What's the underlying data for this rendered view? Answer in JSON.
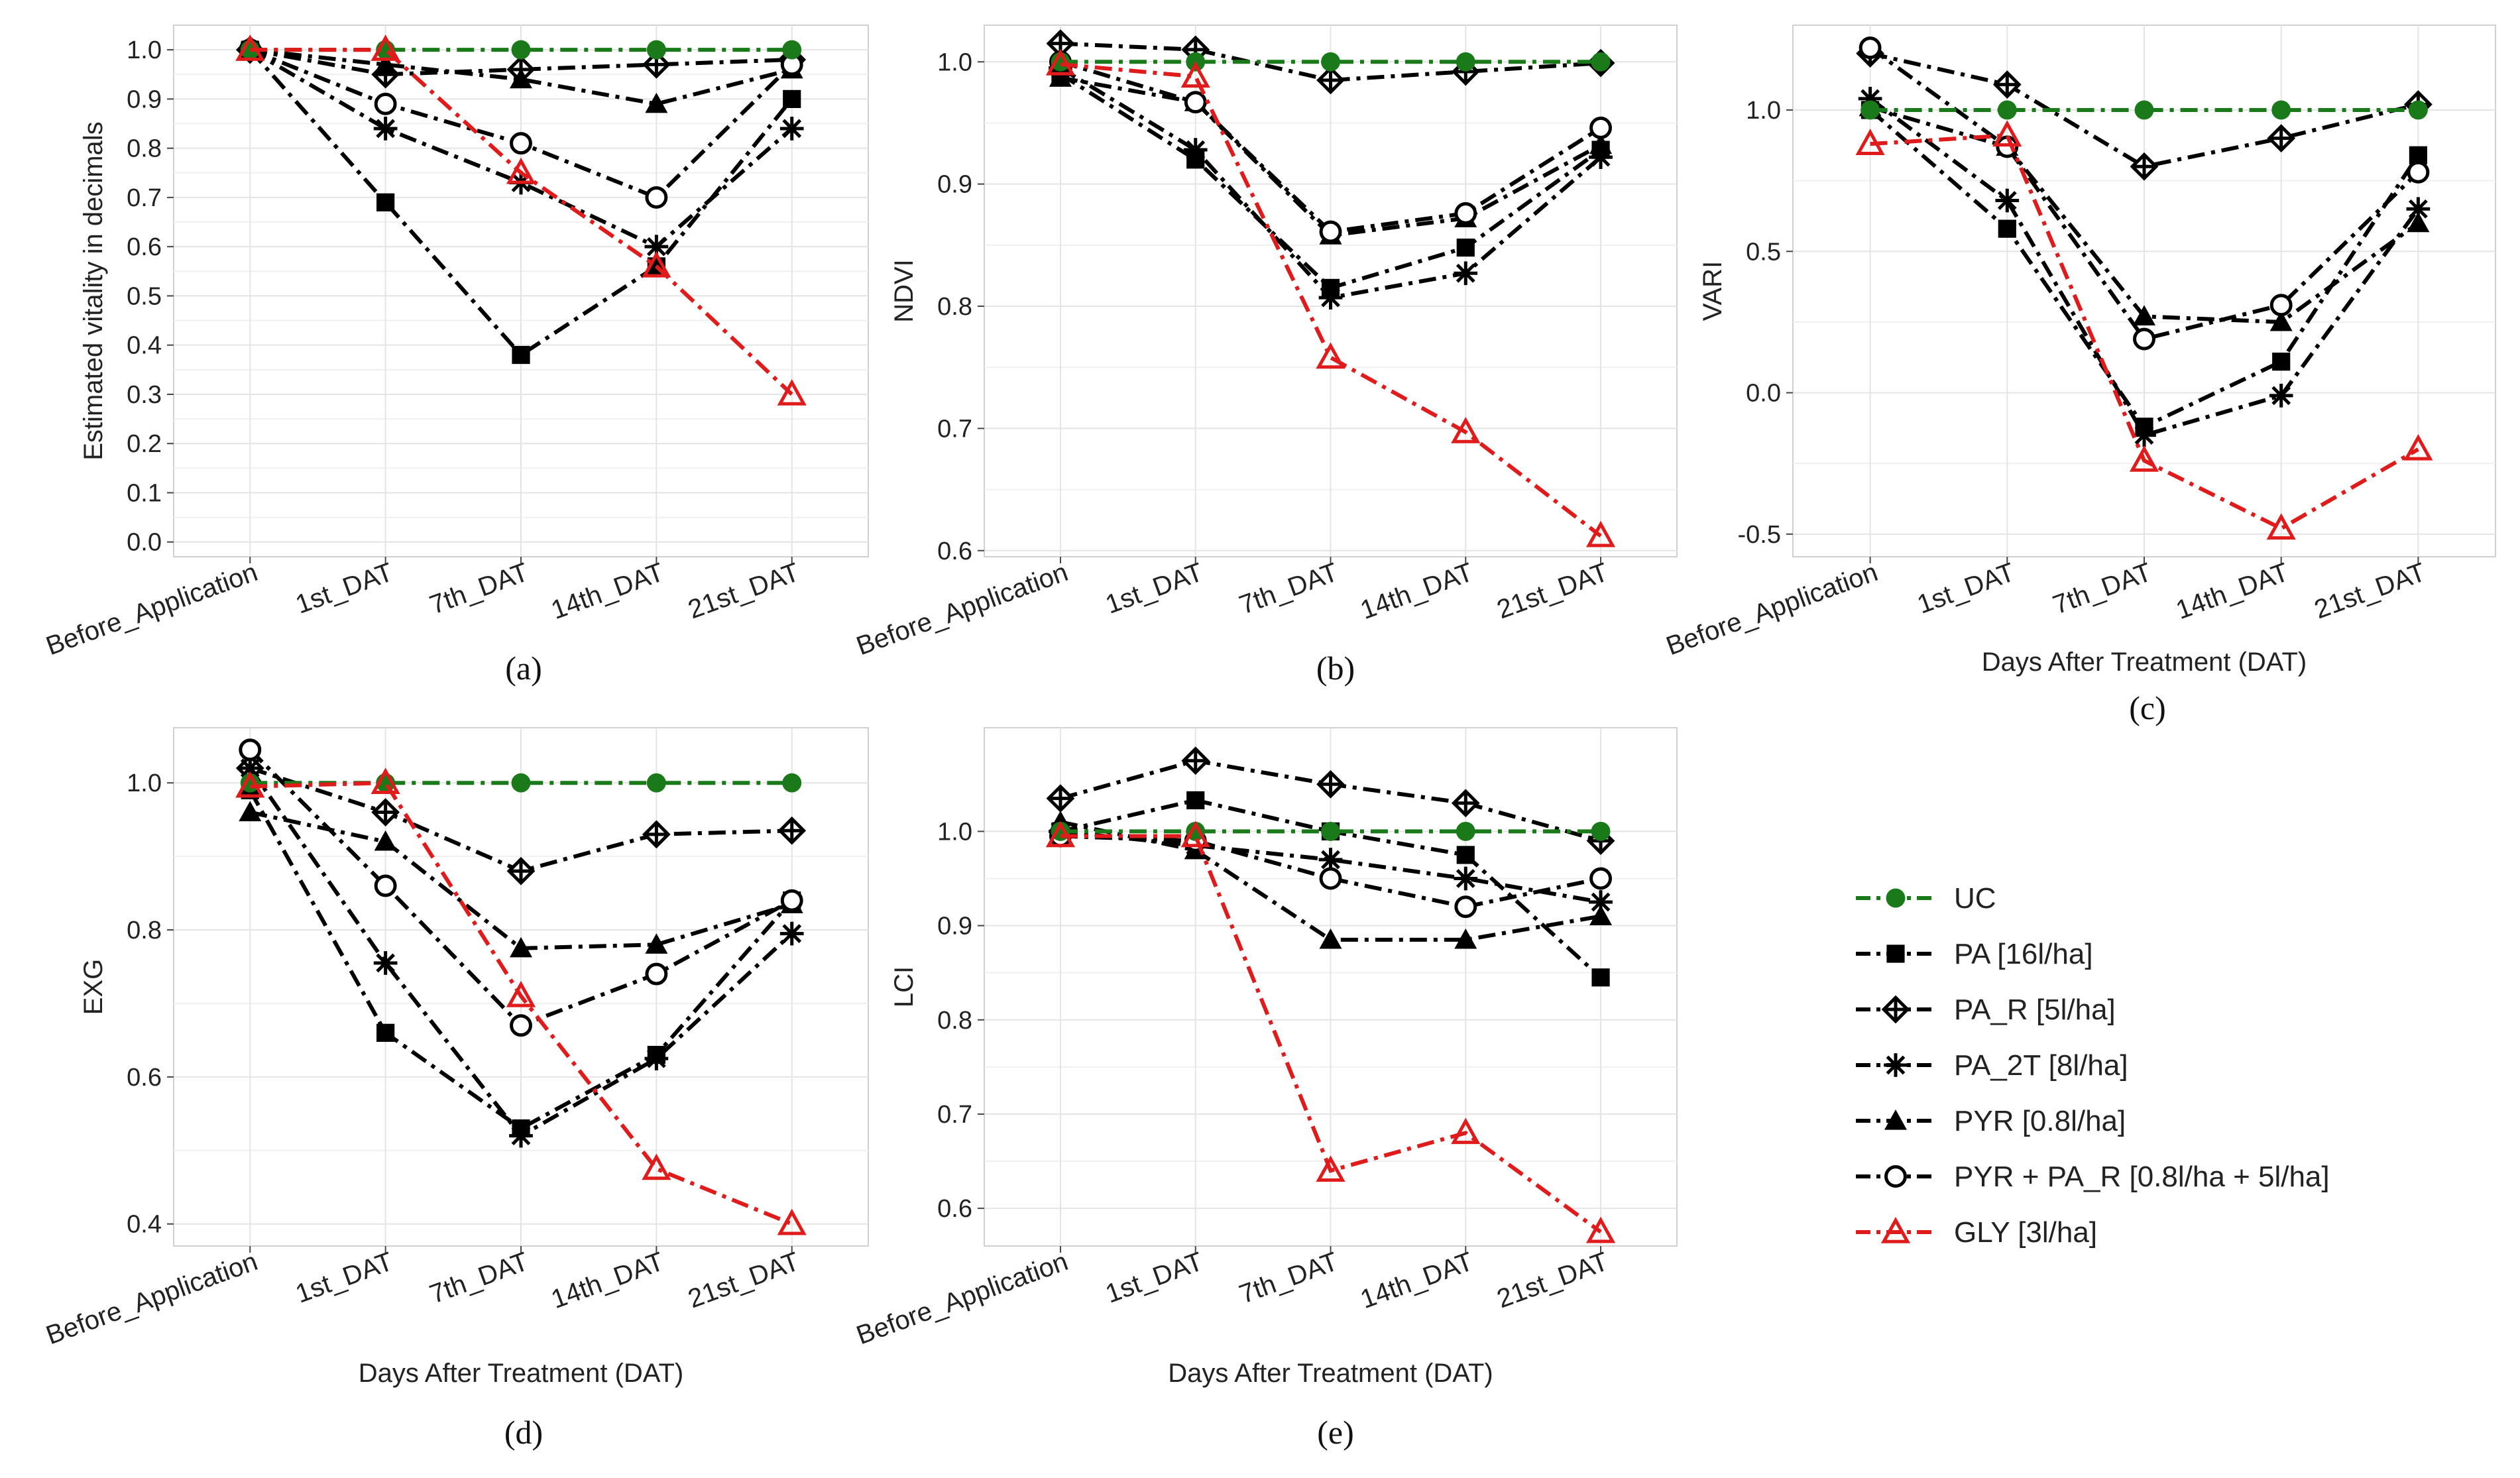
{
  "figure": {
    "legend": [
      {
        "key": "UC",
        "label": "UC",
        "color": "#1a7a1a",
        "marker": "filled-circle",
        "dash": "dash-dot"
      },
      {
        "key": "PA",
        "label": "PA [16l/ha]",
        "color": "#000000",
        "marker": "filled-square",
        "dash": "dash-dot"
      },
      {
        "key": "PA_R",
        "label": "PA_R [5l/ha]",
        "color": "#000000",
        "marker": "crossed-diamond",
        "dash": "dash-dot"
      },
      {
        "key": "PA_2T",
        "label": "PA_2T [8l/ha]",
        "color": "#000000",
        "marker": "asterisk",
        "dash": "dash-dot"
      },
      {
        "key": "PYR",
        "label": "PYR [0.8l/ha]",
        "color": "#000000",
        "marker": "filled-triangle",
        "dash": "dash-dot"
      },
      {
        "key": "PYR_PA_R",
        "label": "PYR + PA_R [0.8l/ha + 5l/ha]",
        "color": "#000000",
        "marker": "open-circle",
        "dash": "dash-dot"
      },
      {
        "key": "GLY",
        "label": "GLY [3l/ha]",
        "color": "#e01b1b",
        "marker": "open-triangle",
        "dash": "dash-dot"
      }
    ]
  },
  "chart_data": [
    {
      "id": "a",
      "type": "line",
      "caption": "(a)",
      "ylabel": "Estimated vitality in decimals",
      "xlabel": "",
      "categories": [
        "Before_Application",
        "1st_DAT",
        "7th_DAT",
        "14th_DAT",
        "21st_DAT"
      ],
      "ylim": [
        -0.03,
        1.05
      ],
      "yticks": [
        0.0,
        0.1,
        0.2,
        0.3,
        0.4,
        0.5,
        0.6,
        0.7,
        0.8,
        0.9,
        1.0
      ],
      "ytick_labels": [
        "0.0",
        "0.1",
        "0.2",
        "0.3",
        "0.4",
        "0.5",
        "0.6",
        "0.7",
        "0.8",
        "0.9",
        "1.0"
      ],
      "series": [
        {
          "name": "UC",
          "values": [
            1.0,
            1.0,
            1.0,
            1.0,
            1.0
          ]
        },
        {
          "name": "PA",
          "values": [
            1.0,
            0.69,
            0.38,
            0.56,
            0.9
          ]
        },
        {
          "name": "PA_R",
          "values": [
            1.0,
            0.95,
            0.96,
            0.97,
            0.98
          ]
        },
        {
          "name": "PA_2T",
          "values": [
            1.0,
            0.84,
            0.73,
            0.6,
            0.84
          ]
        },
        {
          "name": "PYR",
          "values": [
            1.0,
            0.97,
            0.94,
            0.89,
            0.96
          ]
        },
        {
          "name": "PYR_PA_R",
          "values": [
            1.0,
            0.89,
            0.81,
            0.7,
            0.97
          ]
        },
        {
          "name": "GLY",
          "values": [
            1.0,
            1.0,
            0.75,
            0.56,
            0.3
          ]
        }
      ]
    },
    {
      "id": "b",
      "type": "line",
      "caption": "(b)",
      "ylabel": "NDVI",
      "xlabel": "",
      "categories": [
        "Before_Application",
        "1st_DAT",
        "7th_DAT",
        "14th_DAT",
        "21st_DAT"
      ],
      "ylim": [
        0.595,
        1.03
      ],
      "yticks": [
        0.6,
        0.7,
        0.8,
        0.9,
        1.0
      ],
      "ytick_labels": [
        "0.6",
        "0.7",
        "0.8",
        "0.9",
        "1.0"
      ],
      "series": [
        {
          "name": "UC",
          "values": [
            1.0,
            1.0,
            1.0,
            1.0,
            1.0
          ]
        },
        {
          "name": "PA",
          "values": [
            0.99,
            0.92,
            0.815,
            0.848,
            0.928
          ]
        },
        {
          "name": "PA_R",
          "values": [
            1.015,
            1.01,
            0.985,
            0.992,
            0.999
          ]
        },
        {
          "name": "PA_2T",
          "values": [
            0.995,
            0.928,
            0.807,
            0.827,
            0.922
          ]
        },
        {
          "name": "PYR",
          "values": [
            0.987,
            0.967,
            0.858,
            0.872,
            0.932
          ]
        },
        {
          "name": "PYR_PA_R",
          "values": [
            1.0,
            0.967,
            0.861,
            0.876,
            0.946
          ]
        },
        {
          "name": "GLY",
          "values": [
            0.998,
            0.988,
            0.758,
            0.697,
            0.612
          ]
        }
      ]
    },
    {
      "id": "c",
      "type": "line",
      "caption": "(c)",
      "ylabel": "VARI",
      "xlabel": "Days  After Treatment (DAT)",
      "categories": [
        "Before_Application",
        "1st_DAT",
        "7th_DAT",
        "14th_DAT",
        "21st_DAT"
      ],
      "ylim": [
        -0.58,
        1.3
      ],
      "yticks": [
        -0.5,
        0.0,
        0.5,
        1.0
      ],
      "ytick_labels": [
        "-0.5",
        "0.0",
        "0.5",
        "1.0"
      ],
      "series": [
        {
          "name": "UC",
          "values": [
            1.0,
            1.0,
            1.0,
            1.0,
            1.0
          ]
        },
        {
          "name": "PA",
          "values": [
            1.0,
            0.58,
            -0.12,
            0.11,
            0.84
          ]
        },
        {
          "name": "PA_R",
          "values": [
            1.2,
            1.09,
            0.8,
            0.9,
            1.02
          ]
        },
        {
          "name": "PA_2T",
          "values": [
            1.04,
            0.68,
            -0.15,
            -0.01,
            0.65
          ]
        },
        {
          "name": "PYR",
          "values": [
            1.01,
            0.87,
            0.27,
            0.25,
            0.6
          ]
        },
        {
          "name": "PYR_PA_R",
          "values": [
            1.22,
            0.87,
            0.19,
            0.31,
            0.78
          ]
        },
        {
          "name": "GLY",
          "values": [
            0.88,
            0.91,
            -0.24,
            -0.48,
            -0.2
          ]
        }
      ]
    },
    {
      "id": "d",
      "type": "line",
      "caption": "(d)",
      "ylabel": "EXG",
      "xlabel": "Days  After Treatment (DAT)",
      "categories": [
        "Before_Application",
        "1st_DAT",
        "7th_DAT",
        "14th_DAT",
        "21st_DAT"
      ],
      "ylim": [
        0.37,
        1.075
      ],
      "yticks": [
        0.4,
        0.6,
        0.8,
        1.0
      ],
      "ytick_labels": [
        "0.4",
        "0.6",
        "0.8",
        "1.0"
      ],
      "series": [
        {
          "name": "UC",
          "values": [
            1.0,
            1.0,
            1.0,
            1.0,
            1.0
          ]
        },
        {
          "name": "PA",
          "values": [
            0.99,
            0.66,
            0.53,
            0.63,
            0.84
          ]
        },
        {
          "name": "PA_R",
          "values": [
            1.02,
            0.96,
            0.88,
            0.93,
            0.935
          ]
        },
        {
          "name": "PA_2T",
          "values": [
            1.02,
            0.755,
            0.52,
            0.625,
            0.795
          ]
        },
        {
          "name": "PYR",
          "values": [
            0.96,
            0.92,
            0.775,
            0.78,
            0.835
          ]
        },
        {
          "name": "PYR_PA_R",
          "values": [
            1.045,
            0.86,
            0.67,
            0.74,
            0.84
          ]
        },
        {
          "name": "GLY",
          "values": [
            0.995,
            1.0,
            0.71,
            0.475,
            0.4
          ]
        }
      ]
    },
    {
      "id": "e",
      "type": "line",
      "caption": "(e)",
      "ylabel": "LCI",
      "xlabel": "Days  After Treatment (DAT)",
      "categories": [
        "Before_Application",
        "1st_DAT",
        "7th_DAT",
        "14th_DAT",
        "21st_DAT"
      ],
      "ylim": [
        0.56,
        1.11
      ],
      "yticks": [
        0.6,
        0.7,
        0.8,
        0.9,
        1.0
      ],
      "ytick_labels": [
        "0.6",
        "0.7",
        "0.8",
        "0.9",
        "1.0"
      ],
      "series": [
        {
          "name": "UC",
          "values": [
            1.0,
            1.0,
            1.0,
            1.0,
            1.0
          ]
        },
        {
          "name": "PA",
          "values": [
            1.0,
            1.033,
            1.0,
            0.975,
            0.845
          ]
        },
        {
          "name": "PA_R",
          "values": [
            1.035,
            1.075,
            1.05,
            1.03,
            0.99
          ]
        },
        {
          "name": "PA_2T",
          "values": [
            1.0,
            0.985,
            0.97,
            0.95,
            0.925
          ]
        },
        {
          "name": "PYR",
          "values": [
            1.01,
            0.98,
            0.885,
            0.885,
            0.91
          ]
        },
        {
          "name": "PYR_PA_R",
          "values": [
            0.995,
            0.99,
            0.95,
            0.92,
            0.95
          ]
        },
        {
          "name": "GLY",
          "values": [
            0.995,
            0.995,
            0.64,
            0.68,
            0.575
          ]
        }
      ]
    }
  ]
}
